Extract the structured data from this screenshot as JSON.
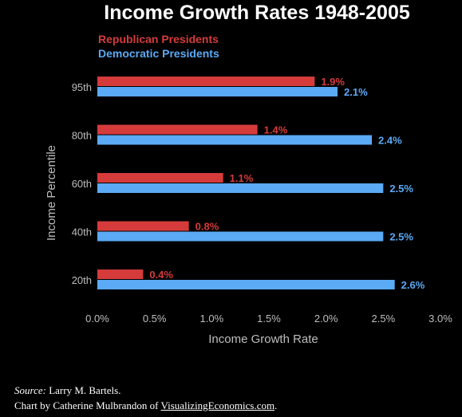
{
  "chart_data": {
    "type": "bar",
    "orientation": "horizontal",
    "title": "Income Growth Rates 1948-2005",
    "categories": [
      "95th",
      "80th",
      "60th",
      "40th",
      "20th"
    ],
    "series": [
      {
        "name": "Republican Presidents",
        "color": "#d63b3b",
        "values": [
          1.9,
          1.4,
          1.1,
          0.8,
          0.4
        ],
        "labels": [
          "1.9%",
          "1.4%",
          "1.1%",
          "0.8%",
          "0.4%"
        ]
      },
      {
        "name": "Democratic Presidents",
        "color": "#5aaaf5",
        "values": [
          2.1,
          2.4,
          2.5,
          2.5,
          2.6
        ],
        "labels": [
          "2.1%",
          "2.4%",
          "2.5%",
          "2.5%",
          "2.6%"
        ]
      }
    ],
    "xlabel": "Income Growth Rate",
    "ylabel": "Income Percentile",
    "xlim": [
      0,
      3.0
    ],
    "xticks": [
      "0.0%",
      "0.5%",
      "1.0%",
      "1.5%",
      "2.0%",
      "2.5%",
      "3.0%"
    ],
    "grid": false,
    "legend": "top-left"
  },
  "footer": {
    "source_label": "Source:",
    "source_text": " Larry M. Bartels.",
    "credit_prefix": "Chart by Catherine Mulbrandon of ",
    "credit_link": "VisualizingEconomics.com",
    "credit_suffix": "."
  }
}
